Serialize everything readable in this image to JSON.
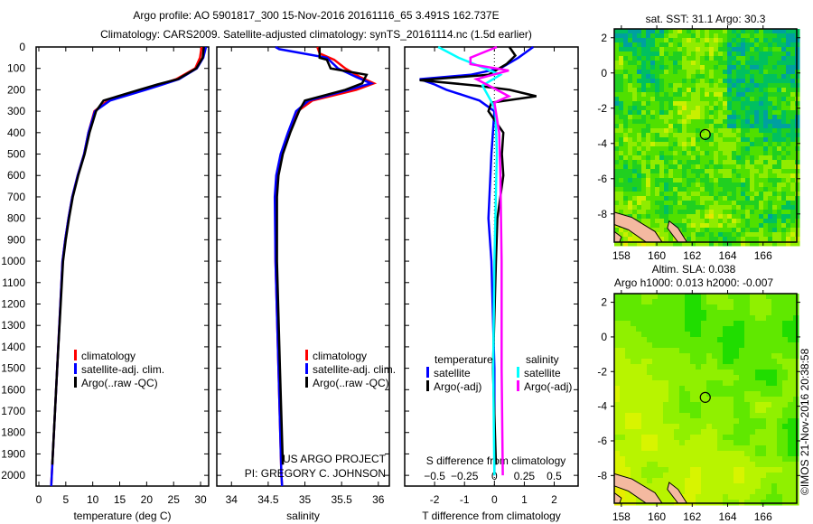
{
  "title": {
    "line1": "Argo profile: AO 5901817_300 15-Nov-2016 20161116_65 3.491S 162.737E",
    "line2": "Climatology: CARS2009. Satellite-adjusted climatology: synTS_20161114.nc (1.5d earlier)"
  },
  "credit": {
    "project": "US ARGO PROJECT",
    "pi": "PI: GREGORY C. JOHNSON"
  },
  "watermark": "©IMOS 21-Nov-2016 20:38:58",
  "colors": {
    "climatology": "#ff0000",
    "satellite": "#0000ff",
    "argo": "#000000",
    "sal_satellite": "#00ffff",
    "sal_argo": "#ff00ff",
    "land": "#f4b9a0"
  },
  "chart_data": [
    {
      "type": "line",
      "name": "temperature-profile",
      "xlabel": "temperature (deg C)",
      "ylabel": "depth",
      "xlim": [
        -0.5,
        31.5
      ],
      "ylim": [
        2050,
        0
      ],
      "xticks": [
        0,
        5,
        10,
        15,
        20,
        25,
        30
      ],
      "yticks": [
        0,
        100,
        200,
        300,
        400,
        500,
        600,
        700,
        800,
        900,
        1000,
        1100,
        1200,
        1300,
        1400,
        1500,
        1600,
        1700,
        1800,
        1900,
        2000
      ],
      "legend": [
        "climatology",
        "satellite-adj. clim.",
        "Argo(..raw -QC)"
      ],
      "series": [
        {
          "name": "climatology",
          "color": "#ff0000",
          "depth": [
            0,
            50,
            100,
            150,
            175,
            200,
            250,
            300,
            400,
            500,
            600,
            700,
            800,
            900,
            1000,
            1500,
            2000,
            2050
          ],
          "values": [
            30.2,
            29.9,
            29.0,
            25.5,
            22.5,
            19.0,
            12.8,
            10.3,
            9.2,
            8.4,
            7.2,
            6.2,
            5.5,
            4.9,
            4.4,
            3.4,
            2.4,
            2.3
          ]
        },
        {
          "name": "satellite-adj. clim.",
          "color": "#0000ff",
          "depth": [
            0,
            50,
            100,
            150,
            175,
            200,
            250,
            300,
            400,
            500,
            600,
            700,
            800,
            900,
            1000,
            1500,
            2000,
            2050
          ],
          "values": [
            31.0,
            30.5,
            29.3,
            26.0,
            23.0,
            19.8,
            13.2,
            10.4,
            9.2,
            8.4,
            7.2,
            6.2,
            5.5,
            4.9,
            4.4,
            3.4,
            2.4,
            2.3
          ]
        },
        {
          "name": "Argo(..raw -QC)",
          "color": "#000000",
          "depth": [
            0,
            50,
            100,
            150,
            175,
            200,
            250,
            300,
            400,
            500,
            600,
            700,
            800,
            900,
            1000,
            1500,
            1950
          ],
          "values": [
            30.6,
            30.4,
            29.2,
            25.8,
            22.0,
            18.6,
            12.0,
            10.6,
            9.4,
            8.5,
            7.3,
            6.3,
            5.6,
            5.0,
            4.5,
            3.4,
            2.5
          ]
        }
      ]
    },
    {
      "type": "line",
      "name": "salinity-profile",
      "xlabel": "salinity",
      "xlim": [
        33.8,
        36.15
      ],
      "ylim": [
        2050,
        0
      ],
      "xticks": [
        34,
        34.5,
        35,
        35.5,
        36
      ],
      "legend": [
        "climatology",
        "satellite-adj. clim.",
        "Argo(..raw -QC)"
      ],
      "series": [
        {
          "name": "climatology",
          "color": "#ff0000",
          "depth": [
            0,
            30,
            60,
            100,
            140,
            170,
            200,
            250,
            300,
            400,
            500,
            600,
            700,
            1000,
            1500,
            2000,
            2050
          ],
          "values": [
            35.17,
            35.2,
            35.4,
            35.55,
            35.75,
            35.94,
            35.7,
            35.1,
            34.9,
            34.78,
            34.68,
            34.62,
            34.6,
            34.6,
            34.64,
            34.68,
            34.69
          ]
        },
        {
          "name": "satellite-adj. clim.",
          "color": "#0000ff",
          "depth": [
            0,
            10,
            50,
            100,
            140,
            170,
            200,
            250,
            300,
            400,
            500,
            600,
            700,
            1000,
            1500,
            2000,
            2050
          ],
          "values": [
            34.6,
            34.65,
            35.3,
            35.45,
            35.7,
            35.9,
            35.6,
            35.05,
            34.88,
            34.77,
            34.67,
            34.61,
            34.59,
            34.6,
            34.64,
            34.68,
            34.69
          ]
        },
        {
          "name": "Argo(..raw -QC)",
          "color": "#000000",
          "depth": [
            0,
            50,
            60,
            100,
            130,
            170,
            200,
            250,
            300,
            400,
            500,
            600,
            700,
            1000,
            1500,
            1950
          ],
          "values": [
            35.2,
            35.2,
            35.3,
            35.35,
            35.84,
            35.78,
            35.55,
            35.0,
            34.92,
            34.8,
            34.7,
            34.64,
            34.62,
            34.62,
            34.66,
            34.7
          ]
        }
      ]
    },
    {
      "type": "line",
      "name": "difference-profile",
      "xlabel": "T difference from climatology",
      "x2label": "S difference from climatology",
      "xlim": [
        -3,
        2.8
      ],
      "x2lim": [
        -0.75,
        0.7
      ],
      "ylim": [
        2050,
        0
      ],
      "xticks": [
        -2,
        -1,
        0,
        1,
        2
      ],
      "x2ticks": [
        -0.5,
        -0.25,
        0,
        0.25,
        0.5
      ],
      "legend_headers": [
        "temperature",
        "salinity"
      ],
      "legend": [
        "satellite",
        "Argo(-adj)",
        "satellite",
        "Argo(-adj)"
      ],
      "series": [
        {
          "name": "T satellite",
          "axis": "T",
          "color": "#0000ff",
          "depth": [
            0,
            50,
            100,
            130,
            150,
            175,
            200,
            250,
            300,
            500,
            800,
            1000,
            1500,
            2000
          ],
          "values": [
            1.3,
            0.8,
            0.2,
            -0.8,
            -2.5,
            -2.0,
            -1.6,
            -0.5,
            0,
            -0.1,
            -0.2,
            -0.1,
            0,
            0
          ]
        },
        {
          "name": "T Argo(-adj)",
          "axis": "T",
          "color": "#000000",
          "depth": [
            0,
            40,
            80,
            130,
            155,
            180,
            200,
            230,
            260,
            300,
            400,
            500,
            600,
            800,
            1000,
            1500,
            1950
          ],
          "values": [
            0.5,
            0.7,
            0.4,
            -0.2,
            -2.5,
            -0.6,
            0.5,
            1.4,
            -0.1,
            -0.2,
            0.3,
            0.25,
            0.3,
            0.1,
            0.05,
            -0.05,
            0.05
          ]
        },
        {
          "name": "S satellite",
          "axis": "S",
          "color": "#00ffff",
          "depth": [
            0,
            50,
            100,
            130,
            180,
            250,
            300,
            500,
            1000,
            1500,
            2000
          ],
          "values": [
            -0.47,
            -0.3,
            -0.08,
            0.05,
            -0.1,
            -0.03,
            0.01,
            0.02,
            0.0,
            -0.01,
            0.0
          ]
        },
        {
          "name": "S Argo(-adj)",
          "axis": "S",
          "color": "#ff00ff",
          "depth": [
            0,
            50,
            80,
            110,
            150,
            200,
            230,
            260,
            400,
            600,
            1000,
            1500,
            2000
          ],
          "values": [
            0.02,
            -0.2,
            -0.2,
            0.12,
            -0.15,
            0.02,
            0.12,
            0.0,
            0.04,
            0.05,
            0.06,
            0.06,
            0.07
          ]
        }
      ]
    },
    {
      "type": "heatmap",
      "name": "sst-map",
      "title": "sat. SST: 31.1 Argo: 30.3",
      "xlim": [
        157.6,
        167.9
      ],
      "ylim": [
        -9.6,
        2.5
      ],
      "xticks": [
        158,
        160,
        162,
        164,
        166
      ],
      "yticks": [
        2,
        0,
        -2,
        -4,
        -6,
        -8
      ],
      "argo_position": {
        "lon": 162.737,
        "lat": -3.491
      }
    },
    {
      "type": "heatmap",
      "name": "sla-map",
      "title": "Altim. SLA: 0.038",
      "subtitle": "Argo h1000: 0.013 h2000: -0.007",
      "xlim": [
        157.6,
        167.9
      ],
      "ylim": [
        -9.6,
        2.5
      ],
      "xticks": [
        158,
        160,
        162,
        164,
        166
      ],
      "yticks": [
        2,
        0,
        -2,
        -4,
        -6,
        -8
      ],
      "argo_position": {
        "lon": 162.737,
        "lat": -3.491
      }
    }
  ]
}
